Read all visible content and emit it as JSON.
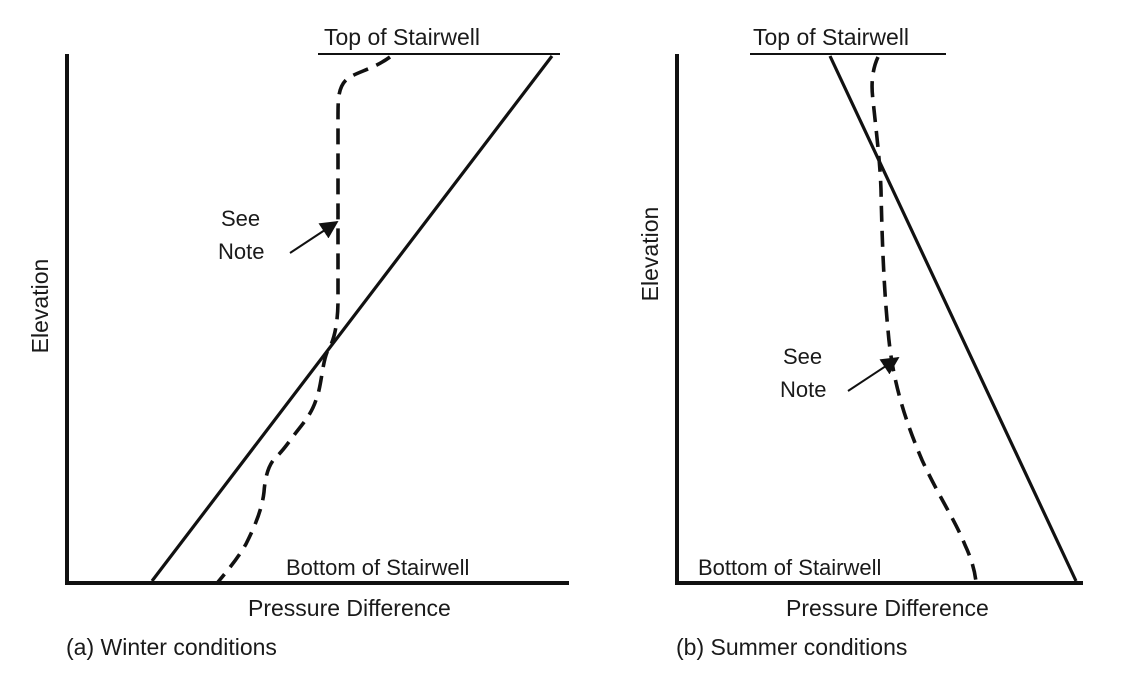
{
  "panels": [
    {
      "id": "winter",
      "caption": "(a) Winter conditions",
      "top_label": "Top of Stairwell",
      "bottom_label": "Bottom of Stairwell",
      "y_axis_label": "Elevation",
      "x_axis_label": "Pressure Difference",
      "note_line1": "See",
      "note_line2": "Note"
    },
    {
      "id": "summer",
      "caption": "(b) Summer conditions",
      "top_label": "Top of Stairwell",
      "bottom_label": "Bottom of Stairwell",
      "y_axis_label": "Elevation",
      "x_axis_label": "Pressure Difference",
      "note_line1": "See",
      "note_line2": "Note"
    }
  ],
  "colors": {
    "ink": "#111111",
    "background": "#ffffff"
  }
}
